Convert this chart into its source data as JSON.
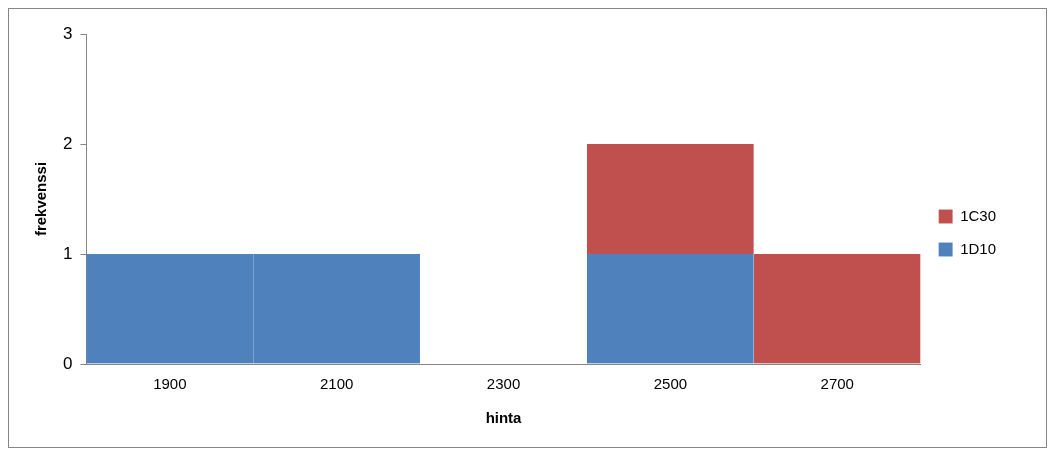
{
  "chart_data": {
    "type": "bar",
    "stacked": true,
    "xlabel": "hinta",
    "ylabel": "frekvenssi",
    "categories": [
      "1900",
      "2100",
      "2300",
      "2500",
      "2700"
    ],
    "series": [
      {
        "name": "1D10",
        "color": "#4f81bd",
        "values": [
          1,
          1,
          0,
          1,
          0
        ]
      },
      {
        "name": "1C30",
        "color": "#c0504d",
        "values": [
          0,
          0,
          0,
          1,
          1
        ]
      }
    ],
    "ylim": [
      0,
      3
    ],
    "yticks": [
      0,
      1,
      2,
      3
    ],
    "legend": "right"
  }
}
